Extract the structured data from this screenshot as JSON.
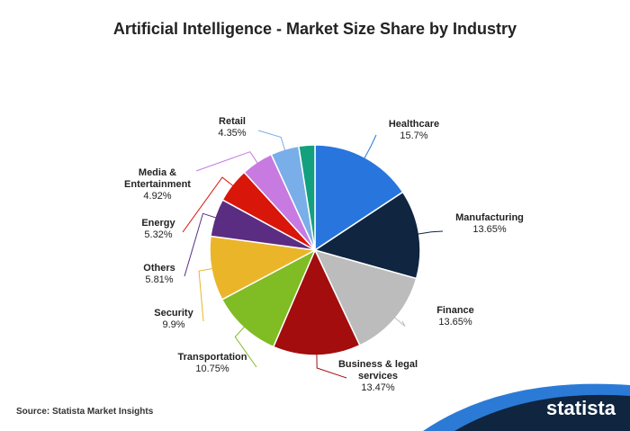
{
  "chart_data": {
    "type": "pie",
    "title": "Artificial Intelligence - Market Size Share by Industry",
    "categories": [
      "Healthcare",
      "Manufacturing",
      "Finance",
      "Business & legal services",
      "Transportation",
      "Security",
      "Others",
      "Energy",
      "Media & Entertainment",
      "Retail",
      null
    ],
    "values": [
      15.7,
      13.65,
      13.65,
      13.47,
      10.75,
      9.9,
      5.81,
      5.32,
      4.92,
      4.35,
      2.48
    ],
    "value_labels": [
      "15.7%",
      "13.65%",
      "13.65%",
      "13.47%",
      "10.75%",
      "9.9%",
      "5.81%",
      "5.32%",
      "4.92%",
      "4.35%",
      null
    ],
    "colors": [
      "#2876dd",
      "#0f2540",
      "#bcbcbc",
      "#a30d0d",
      "#80bc24",
      "#ebb52a",
      "#5b2d82",
      "#d9160a",
      "#c77ae0",
      "#7aaee8",
      "#13a07e"
    ]
  },
  "footer": {
    "source": "Source: Statista Market Insights",
    "brand": "statista"
  }
}
